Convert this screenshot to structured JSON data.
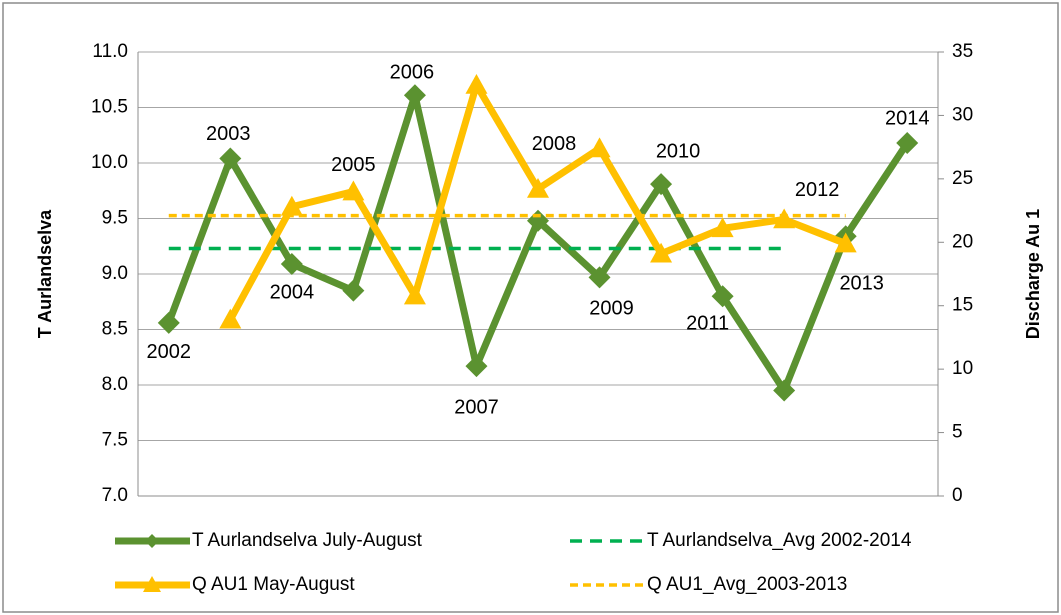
{
  "chart_data": {
    "type": "line",
    "categories": [
      "2002",
      "2003",
      "2004",
      "2005",
      "2006",
      "2007",
      "2008",
      "2009",
      "2010",
      "2011",
      "2012",
      "2013",
      "2014"
    ],
    "y_label": "T Aurlandselva",
    "y2_label": "Discharge Au 1",
    "ylim": [
      7,
      11
    ],
    "yticks": [
      {
        "value": 7,
        "label": "7.0"
      },
      {
        "value": 7.5,
        "label": "7.5"
      },
      {
        "value": 8,
        "label": "8.0"
      },
      {
        "value": 8.5,
        "label": "8.5"
      },
      {
        "value": 9,
        "label": "9.0"
      },
      {
        "value": 9.5,
        "label": "9.5"
      },
      {
        "value": 10,
        "label": "10.0"
      },
      {
        "value": 10.5,
        "label": "10.5"
      },
      {
        "value": 11,
        "label": "11.0"
      }
    ],
    "y2lim": [
      0,
      35
    ],
    "y2ticks": [
      0,
      5,
      10,
      15,
      20,
      25,
      30,
      35
    ],
    "grid": true,
    "legend": "bottom",
    "series": [
      {
        "name": "T Aurlandselva July-August",
        "color": "#5b9230",
        "marker": "diamond",
        "dashed": false,
        "values": [
          8.56,
          10.04,
          9.09,
          8.85,
          10.61,
          8.17,
          9.48,
          8.97,
          9.81,
          8.8,
          7.95,
          9.34,
          10.18
        ]
      },
      {
        "name": "T Aurlandselva_Avg 2002-2014",
        "color": "#00b050",
        "marker": "none",
        "dashed": true,
        "values": [
          9.23,
          9.23,
          9.23,
          9.23,
          9.23,
          9.23,
          9.23,
          9.23,
          9.23,
          9.23,
          9.23,
          null,
          null
        ]
      },
      {
        "name": "Q AU1 May-August",
        "color": "#ffc000",
        "marker": "triangle",
        "dashed": false,
        "axis": "y2",
        "values": [
          null,
          13.9,
          22.8,
          24.0,
          15.8,
          32.4,
          24.2,
          27.4,
          19.1,
          21.1,
          21.8,
          19.9,
          null
        ]
      },
      {
        "name": "Q AU1_Avg_2003-2013",
        "color": "#ffc000",
        "marker": "none",
        "dashed": true,
        "axis": "y2",
        "values": [
          22.1,
          22.1,
          22.1,
          22.1,
          22.1,
          22.1,
          22.1,
          22.1,
          22.1,
          22.1,
          22.1,
          22.1,
          null
        ]
      }
    ]
  }
}
